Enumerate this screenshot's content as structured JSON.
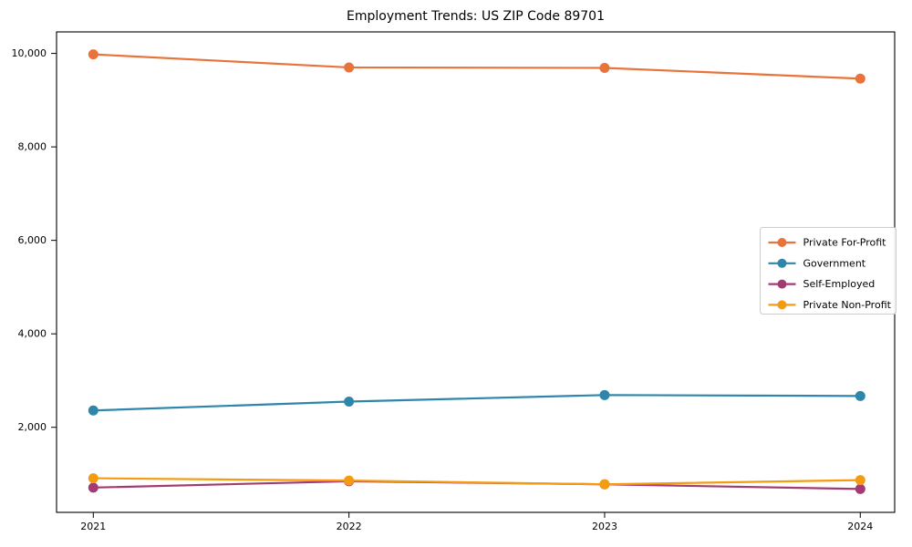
{
  "chart_data": {
    "type": "line",
    "title": "Employment Trends: US ZIP Code 89701",
    "x": [
      "2021",
      "2022",
      "2023",
      "2024"
    ],
    "series": [
      {
        "name": "Private For-Profit",
        "color": "#e8743b",
        "values": [
          9980,
          9700,
          9690,
          9460
        ]
      },
      {
        "name": "Government",
        "color": "#2e86ab",
        "values": [
          2360,
          2550,
          2690,
          2670
        ]
      },
      {
        "name": "Self-Employed",
        "color": "#a23b72",
        "values": [
          710,
          845,
          780,
          680
        ]
      },
      {
        "name": "Private Non-Profit",
        "color": "#f39c12",
        "values": [
          910,
          860,
          780,
          870
        ]
      }
    ],
    "xlabel": "",
    "ylabel": "",
    "yticks": [
      2000,
      4000,
      6000,
      8000,
      10000
    ],
    "ytick_labels": [
      "2,000",
      "4,000",
      "6,000",
      "8,000",
      "10,000"
    ],
    "ylim": [
      180,
      10460
    ],
    "grid": false,
    "marker": "circle",
    "legend_position": "center right",
    "legend_entries": [
      "Private For-Profit",
      "Government",
      "Self-Employed",
      "Private Non-Profit"
    ]
  }
}
